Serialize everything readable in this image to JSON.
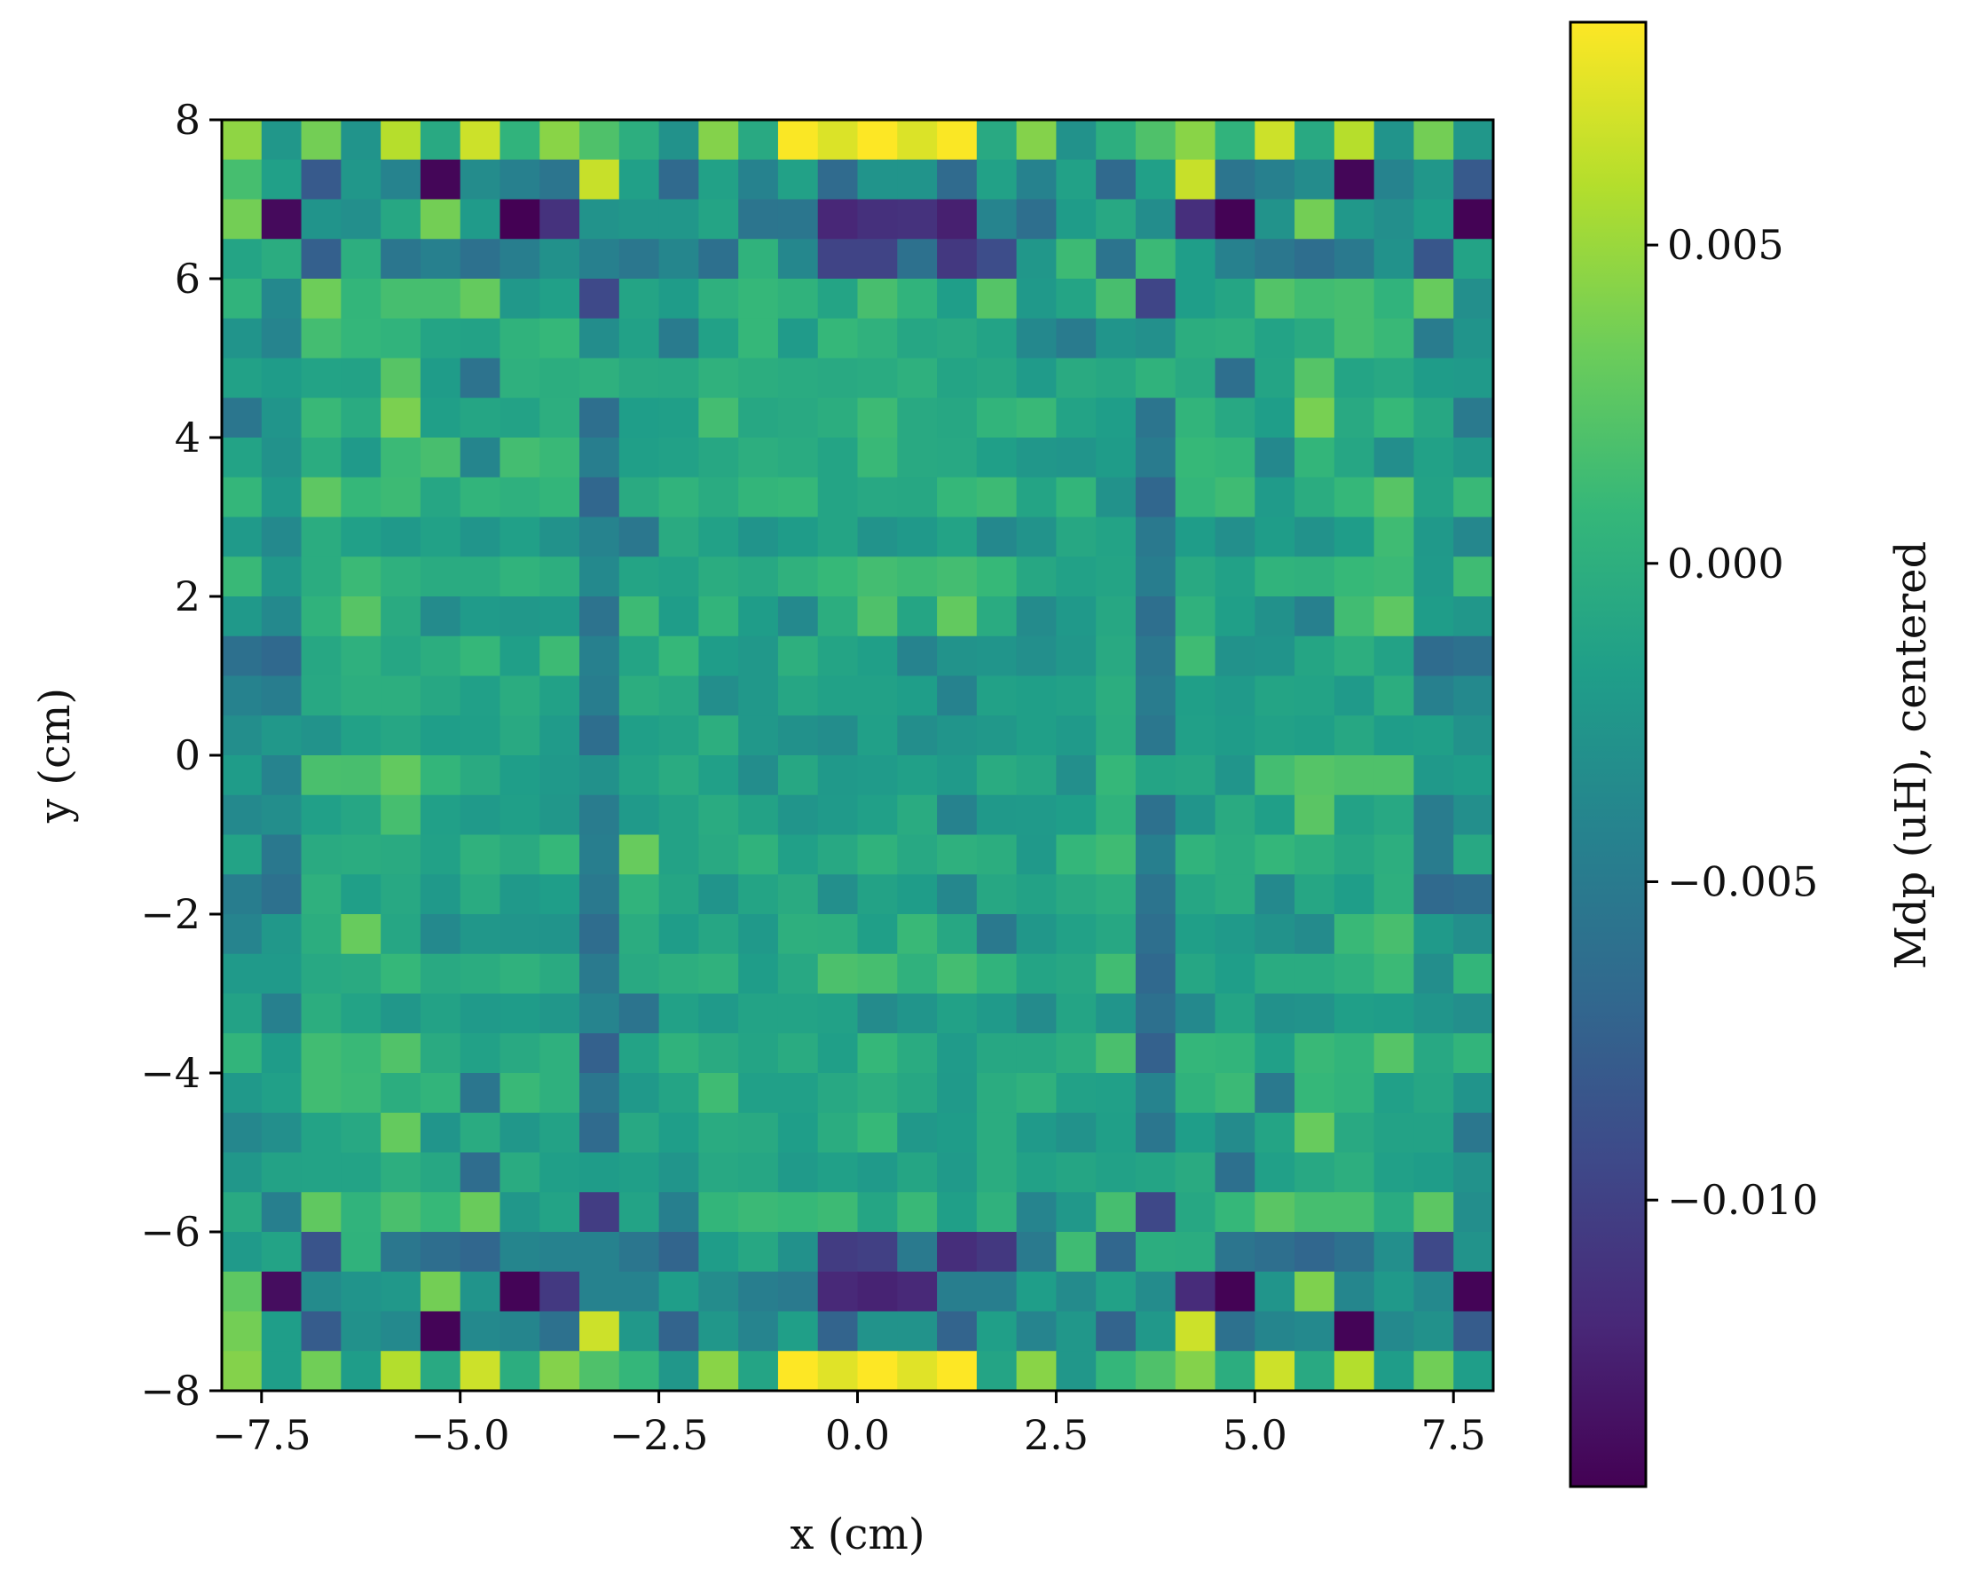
{
  "chart_data": {
    "type": "heatmap",
    "title": "",
    "xlabel": "x (cm)",
    "ylabel": "y (cm)",
    "xlim": [
      -8,
      8
    ],
    "ylim": [
      -8,
      8
    ],
    "nx": 32,
    "ny": 32,
    "x_ticks": [
      -7.5,
      -5.0,
      -2.5,
      0.0,
      2.5,
      5.0,
      7.5
    ],
    "x_tick_labels": [
      "−7.5",
      "−5.0",
      "−2.5",
      "0.0",
      "2.5",
      "5.0",
      "7.5"
    ],
    "y_ticks": [
      8,
      6,
      4,
      2,
      0,
      -2,
      -4,
      -6,
      -8
    ],
    "y_tick_labels": [
      "8",
      "6",
      "4",
      "2",
      "0",
      "−2",
      "−4",
      "−6",
      "−8"
    ],
    "colorbar": {
      "label": "Mdp (uH), centered",
      "colormap": "viridis",
      "vmin": -0.0145,
      "vmax": 0.0085,
      "ticks": [
        0.005,
        0.0,
        -0.005,
        -0.01
      ],
      "tick_labels": [
        "0.005",
        "0.000",
        "−0.005",
        "−0.010"
      ]
    },
    "values": [
      [
        0.0046,
        -0.0024,
        0.0036,
        -0.0026,
        0.006,
        -0.0006,
        0.0068,
        0.0004,
        0.0044,
        0.002,
        -0.0001,
        -0.0028,
        0.0042,
        -0.0006,
        0.0084,
        0.0073,
        0.0086,
        0.0073,
        0.0084,
        -0.0006,
        0.0042,
        -0.0028,
        -0.0001,
        0.002,
        0.0044,
        0.0004,
        0.0068,
        -0.0006,
        0.006,
        -0.0026,
        0.0036,
        -0.0024
      ],
      [
        0.0016,
        -0.0015,
        -0.008,
        -0.0024,
        -0.0042,
        -0.0142,
        -0.0034,
        -0.0045,
        -0.0056,
        0.0066,
        -0.0015,
        -0.0066,
        -0.0014,
        -0.0043,
        -0.0014,
        -0.0065,
        -0.0026,
        -0.0026,
        -0.0065,
        -0.0014,
        -0.0043,
        -0.0014,
        -0.0066,
        -0.0015,
        0.0066,
        -0.0056,
        -0.0045,
        -0.0034,
        -0.0142,
        -0.0042,
        -0.0024,
        -0.008
      ],
      [
        0.0036,
        -0.0139,
        -0.0026,
        -0.0031,
        -0.0008,
        0.0036,
        -0.002,
        -0.0145,
        -0.0112,
        -0.0027,
        -0.0024,
        -0.0024,
        -0.0011,
        -0.0056,
        -0.0055,
        -0.012,
        -0.0113,
        -0.0112,
        -0.0125,
        -0.0041,
        -0.0061,
        -0.0019,
        -0.0007,
        -0.0033,
        -0.0114,
        -0.0144,
        -0.0027,
        0.0036,
        -0.0023,
        -0.0031,
        -0.0017,
        -0.0144
      ],
      [
        -0.0011,
        -0.0003,
        -0.0075,
        -0.0001,
        -0.0055,
        -0.0045,
        -0.0059,
        -0.0047,
        -0.0029,
        -0.0045,
        -0.0054,
        -0.0039,
        -0.006,
        0.0003,
        -0.0038,
        -0.0098,
        -0.0098,
        -0.0059,
        -0.0107,
        -0.0091,
        -0.0024,
        0.0012,
        -0.0057,
        0.0011,
        -0.0017,
        -0.0044,
        -0.0054,
        -0.0062,
        -0.0052,
        -0.0028,
        -0.0083,
        -0.0012
      ],
      [
        0.0004,
        -0.0037,
        0.0034,
        0.0006,
        0.0016,
        0.0016,
        0.003,
        -0.0023,
        -0.0015,
        -0.0094,
        -0.0011,
        -0.0019,
        0.0001,
        0.0008,
        0.0003,
        -0.0011,
        0.0017,
        0.0004,
        -0.0017,
        0.0023,
        -0.0022,
        -0.0011,
        0.0017,
        -0.0097,
        -0.0017,
        -0.001,
        0.0022,
        0.0014,
        0.0016,
        0.0004,
        0.0031,
        -0.0031
      ],
      [
        -0.0026,
        -0.0041,
        0.0015,
        0.0007,
        0.0004,
        -0.0011,
        -0.0013,
        0.0003,
        0.0008,
        -0.0033,
        -0.0014,
        -0.005,
        -0.0014,
        0.0008,
        -0.002,
        0.0008,
        0.0002,
        -0.0009,
        -0.0006,
        -0.0012,
        -0.0037,
        -0.005,
        -0.0025,
        -0.003,
        -0.0002,
        0.0,
        -0.0012,
        -0.0005,
        0.0016,
        0.001,
        -0.0049,
        -0.0026
      ],
      [
        -0.0014,
        -0.0019,
        -0.0012,
        -0.0013,
        0.0024,
        -0.0019,
        -0.0058,
        0.0001,
        -0.0002,
        0.0001,
        -0.0006,
        -0.0007,
        0.0002,
        -0.0002,
        -0.0004,
        -0.0006,
        -0.0004,
        0.0001,
        -0.0011,
        -0.0008,
        -0.002,
        -0.0005,
        -0.0008,
        0.0003,
        -0.0006,
        -0.0061,
        -0.0011,
        0.0023,
        -0.0011,
        -0.0007,
        -0.0019,
        -0.0021
      ],
      [
        -0.0055,
        -0.0025,
        0.001,
        -0.0004,
        0.0039,
        -0.0016,
        -0.001,
        -0.0013,
        -0.0001,
        -0.0061,
        -0.0017,
        -0.0016,
        0.0015,
        -0.0008,
        -0.0006,
        -0.0002,
        0.0012,
        -0.0006,
        -0.0008,
        0.0005,
        0.001,
        -0.0012,
        -0.0017,
        -0.0056,
        0.0005,
        -0.0007,
        -0.0017,
        0.0038,
        -0.0006,
        0.0009,
        -0.0008,
        -0.0051
      ],
      [
        -0.0012,
        -0.0028,
        -0.0003,
        -0.0021,
        0.0011,
        0.0017,
        -0.004,
        0.0015,
        0.001,
        -0.0047,
        -0.0016,
        -0.0014,
        -0.0008,
        -0.0001,
        -0.0004,
        -0.0011,
        0.001,
        -0.0006,
        -0.0007,
        -0.0016,
        -0.0024,
        -0.0025,
        -0.0019,
        -0.005,
        0.0009,
        0.0006,
        -0.0037,
        0.0006,
        -0.0009,
        -0.0032,
        -0.0014,
        -0.0024
      ],
      [
        0.0007,
        -0.0022,
        0.0027,
        0.0008,
        0.0012,
        -0.0009,
        0.0005,
        0.0001,
        0.0006,
        -0.0069,
        -0.0005,
        0.0004,
        -0.0004,
        0.0006,
        0.0008,
        -0.0011,
        -0.0007,
        -0.0008,
        0.0008,
        0.0012,
        -0.0011,
        0.0006,
        -0.0028,
        -0.0069,
        0.0007,
        0.0013,
        -0.002,
        -0.0003,
        0.0008,
        0.0024,
        -0.0013,
        0.001
      ],
      [
        -0.0021,
        -0.0036,
        -0.0003,
        -0.0015,
        -0.0022,
        -0.0014,
        -0.0025,
        -0.0015,
        -0.0028,
        -0.0042,
        -0.0054,
        -0.0005,
        -0.0014,
        -0.0026,
        -0.0019,
        -0.0011,
        -0.0027,
        -0.0022,
        -0.0012,
        -0.0037,
        -0.0027,
        -0.0008,
        -0.0012,
        -0.0052,
        -0.0018,
        -0.0031,
        -0.0018,
        -0.0028,
        -0.0018,
        0.0013,
        -0.0022,
        -0.0038
      ],
      [
        0.001,
        -0.0024,
        -0.0003,
        0.0011,
        0.0001,
        -0.0004,
        -0.0004,
        0.0004,
        -0.0001,
        -0.0036,
        -0.0011,
        -0.0014,
        -0.0003,
        -0.0007,
        0.0002,
        0.0009,
        0.0015,
        0.0012,
        0.0015,
        0.0009,
        -0.0008,
        -0.0014,
        -0.0011,
        -0.0048,
        -0.0006,
        -0.0014,
        0.0004,
        0.0002,
        0.0009,
        0.0011,
        -0.0021,
        0.0013
      ],
      [
        -0.0022,
        -0.0036,
        0.0003,
        0.0024,
        -0.0005,
        -0.0035,
        -0.002,
        -0.0023,
        -0.0021,
        -0.0058,
        0.0012,
        -0.0018,
        0.0005,
        -0.0018,
        -0.0036,
        -0.0002,
        0.002,
        -0.001,
        0.0029,
        -0.0004,
        -0.0035,
        -0.0022,
        -0.0008,
        -0.0061,
        0.0002,
        -0.0016,
        -0.0029,
        -0.0045,
        0.0014,
        0.0027,
        -0.0018,
        -0.0024
      ],
      [
        -0.006,
        -0.0067,
        -0.0008,
        0.0001,
        -0.0009,
        -0.0002,
        0.0008,
        -0.0016,
        0.0012,
        -0.0045,
        -0.0011,
        0.0008,
        -0.0018,
        -0.0023,
        0.0,
        -0.0011,
        -0.0016,
        -0.0042,
        -0.0027,
        -0.0025,
        -0.0031,
        -0.0024,
        -0.0006,
        -0.0054,
        0.0013,
        -0.0028,
        -0.0026,
        -0.001,
        -0.0001,
        -0.0013,
        -0.0064,
        -0.0059
      ],
      [
        -0.0043,
        -0.0048,
        -0.0007,
        -0.0001,
        -0.0001,
        -0.0008,
        -0.0015,
        -0.0003,
        -0.0014,
        -0.0048,
        -0.0002,
        -0.0007,
        -0.0032,
        -0.0023,
        -0.0009,
        -0.0014,
        -0.0014,
        -0.0017,
        -0.0043,
        -0.0014,
        -0.0016,
        -0.0014,
        -0.0002,
        -0.0049,
        -0.0016,
        -0.0021,
        -0.0011,
        -0.0012,
        -0.0021,
        -0.0002,
        -0.0045,
        -0.0036
      ],
      [
        -0.0032,
        -0.0023,
        -0.0027,
        -0.0014,
        -0.0009,
        -0.0017,
        -0.0016,
        -0.0006,
        -0.002,
        -0.0062,
        -0.0016,
        -0.0013,
        -0.0001,
        -0.0023,
        -0.0029,
        -0.0033,
        -0.0015,
        -0.0032,
        -0.0025,
        -0.0023,
        -0.0016,
        -0.0021,
        -0.0003,
        -0.0054,
        -0.0015,
        -0.0019,
        -0.0014,
        -0.0016,
        -0.0008,
        -0.0018,
        -0.0016,
        -0.0028
      ],
      [
        -0.0019,
        -0.0042,
        0.0018,
        0.0017,
        0.0029,
        0.0006,
        -0.0005,
        -0.0017,
        -0.0022,
        -0.0029,
        -0.0012,
        -0.0004,
        -0.0015,
        -0.0033,
        -0.0008,
        -0.0022,
        -0.002,
        -0.0015,
        -0.0021,
        -0.0004,
        -0.0009,
        -0.0031,
        0.0008,
        -0.0011,
        -0.0009,
        -0.0025,
        0.0015,
        0.0023,
        0.002,
        0.002,
        -0.0022,
        -0.0018
      ],
      [
        -0.0036,
        -0.0032,
        -0.0015,
        -0.0009,
        0.0016,
        -0.0015,
        -0.0021,
        -0.0016,
        -0.0024,
        -0.0049,
        -0.0021,
        -0.0013,
        -0.0004,
        -0.0013,
        -0.0025,
        -0.0021,
        -0.0015,
        -0.0004,
        -0.0043,
        -0.0022,
        -0.0021,
        -0.0017,
        0.0003,
        -0.0059,
        -0.0025,
        -0.0005,
        -0.0016,
        0.0025,
        -0.0013,
        -0.0007,
        -0.0049,
        -0.0031
      ],
      [
        -0.0012,
        -0.0053,
        -0.0005,
        -0.0003,
        -0.0005,
        -0.0014,
        0.0002,
        -0.0005,
        0.0008,
        -0.0047,
        0.0031,
        -0.0013,
        -0.0006,
        0.0003,
        -0.0015,
        -0.0007,
        0.0003,
        -0.0007,
        0.0001,
        -0.0002,
        -0.0022,
        0.0007,
        0.0013,
        -0.0046,
        0.0004,
        -0.0003,
        0.0007,
        0.0,
        -0.0008,
        -0.0001,
        -0.0049,
        -0.0007
      ],
      [
        -0.0048,
        -0.0059,
        0.0001,
        -0.0016,
        -0.0007,
        -0.0022,
        -0.0004,
        -0.0022,
        -0.0017,
        -0.0052,
        0.0004,
        -0.001,
        -0.0026,
        -0.0011,
        -0.0005,
        -0.0031,
        -0.0013,
        -0.0018,
        -0.0038,
        -0.0008,
        -0.0013,
        -0.0006,
        -0.0001,
        -0.0057,
        -0.0009,
        -0.0003,
        -0.0036,
        -0.0009,
        -0.0017,
        0.0,
        -0.0066,
        -0.0062
      ],
      [
        -0.0041,
        -0.0023,
        -0.0002,
        0.0031,
        -0.0009,
        -0.0036,
        -0.0024,
        -0.0025,
        -0.0026,
        -0.0063,
        -0.0003,
        -0.0018,
        -0.0009,
        -0.0022,
        0.0,
        -0.0001,
        -0.0016,
        0.001,
        -0.0008,
        -0.0052,
        -0.0024,
        -0.0014,
        -0.0008,
        -0.0061,
        -0.0016,
        -0.0021,
        -0.0028,
        -0.0035,
        0.001,
        0.0017,
        -0.0021,
        -0.0031
      ],
      [
        -0.0021,
        -0.0021,
        -0.0007,
        -0.0005,
        0.0008,
        -0.0006,
        -0.0003,
        0.0002,
        -0.0005,
        -0.0051,
        -0.0006,
        -0.0001,
        0.0002,
        -0.0018,
        -0.0007,
        0.0019,
        0.0016,
        0.0002,
        0.0015,
        0.0004,
        -0.0011,
        -0.0008,
        0.0014,
        -0.0067,
        -0.0009,
        -0.0017,
        -0.0004,
        -0.0004,
        0.0001,
        0.0011,
        -0.0032,
        0.0006
      ],
      [
        -0.0013,
        -0.0045,
        -0.0002,
        -0.0012,
        -0.0024,
        -0.0013,
        -0.0021,
        -0.0019,
        -0.0024,
        -0.0041,
        -0.0057,
        -0.0014,
        -0.0021,
        -0.0012,
        -0.0012,
        -0.0014,
        -0.0035,
        -0.0025,
        -0.0014,
        -0.0021,
        -0.0035,
        -0.0011,
        -0.0025,
        -0.006,
        -0.0036,
        -0.0011,
        -0.0029,
        -0.0027,
        -0.0016,
        -0.0018,
        -0.0025,
        -0.0031
      ],
      [
        0.0005,
        -0.0019,
        0.0014,
        0.001,
        0.0021,
        -0.0005,
        -0.0014,
        -0.0006,
        0.0001,
        -0.0074,
        -0.0012,
        0.0003,
        -0.0005,
        -0.0011,
        -0.0004,
        -0.0016,
        0.0008,
        -0.0004,
        -0.002,
        -0.0008,
        -0.0008,
        -0.0002,
        0.0018,
        -0.0074,
        0.0007,
        0.0005,
        -0.0015,
        0.001,
        0.0005,
        0.0023,
        -0.0007,
        0.0005
      ],
      [
        -0.0022,
        -0.0015,
        0.0014,
        0.0011,
        -0.0002,
        0.0005,
        -0.0055,
        0.001,
        0.0001,
        -0.0055,
        -0.0022,
        -0.0011,
        0.0013,
        -0.0015,
        -0.0015,
        -0.0007,
        -0.0001,
        -0.0008,
        -0.0021,
        -0.0003,
        0.0002,
        -0.0014,
        -0.0015,
        -0.0042,
        0.0003,
        0.0011,
        -0.0052,
        0.0008,
        0.0004,
        -0.0015,
        -0.0009,
        -0.0026
      ],
      [
        -0.0038,
        -0.0031,
        -0.0012,
        -0.0007,
        0.003,
        -0.0025,
        -0.0004,
        -0.0024,
        -0.0013,
        -0.0065,
        -0.0007,
        -0.0017,
        -0.0004,
        -0.0006,
        -0.0017,
        -0.0003,
        0.0009,
        -0.0023,
        -0.0019,
        -0.0003,
        -0.0021,
        -0.0028,
        -0.0016,
        -0.0055,
        -0.0017,
        -0.0035,
        -0.0011,
        0.0031,
        -0.0006,
        -0.0013,
        -0.0013,
        -0.0054
      ],
      [
        -0.0024,
        -0.0013,
        -0.0012,
        -0.0012,
        -0.0001,
        -0.0008,
        -0.0063,
        -0.0004,
        -0.0016,
        -0.0019,
        -0.0016,
        -0.0025,
        -0.0007,
        -0.0009,
        -0.0021,
        -0.0015,
        -0.0021,
        -0.001,
        -0.0021,
        -0.0003,
        -0.0014,
        -0.001,
        -0.0014,
        -0.0011,
        -0.0005,
        -0.006,
        -0.0015,
        -0.0007,
        -0.0001,
        -0.0015,
        -0.0018,
        -0.0028
      ],
      [
        -0.0006,
        -0.0046,
        0.0028,
        0.0004,
        0.0018,
        0.0009,
        0.0032,
        -0.0024,
        -0.0012,
        -0.0103,
        -0.0012,
        -0.0046,
        0.0006,
        0.0011,
        0.0009,
        0.0012,
        -0.001,
        0.001,
        -0.0016,
        0.0002,
        -0.0041,
        -0.0023,
        0.0016,
        -0.0095,
        -0.0008,
        0.0008,
        0.0025,
        0.0016,
        0.0016,
        -0.0004,
        0.0026,
        -0.0032
      ],
      [
        -0.0021,
        -0.0012,
        -0.0085,
        0.0003,
        -0.0054,
        -0.0062,
        -0.0069,
        -0.004,
        -0.0043,
        -0.0043,
        -0.0055,
        -0.0071,
        -0.0018,
        -0.0008,
        -0.0029,
        -0.0104,
        -0.0101,
        -0.0051,
        -0.0115,
        -0.0107,
        -0.0051,
        0.0013,
        -0.0069,
        -0.0002,
        -0.0003,
        -0.0056,
        -0.0061,
        -0.0069,
        -0.0059,
        -0.0031,
        -0.0094,
        -0.0027
      ],
      [
        0.0027,
        -0.0137,
        -0.0035,
        -0.0026,
        -0.0023,
        0.0036,
        -0.0026,
        -0.0143,
        -0.0106,
        -0.0043,
        -0.0043,
        -0.0017,
        -0.0034,
        -0.0047,
        -0.0051,
        -0.0119,
        -0.0123,
        -0.0119,
        -0.0047,
        -0.0047,
        -0.0017,
        -0.0035,
        -0.0014,
        -0.0034,
        -0.0116,
        -0.0144,
        -0.0025,
        0.004,
        -0.0039,
        -0.0022,
        -0.0036,
        -0.0143
      ],
      [
        0.0036,
        -0.0017,
        -0.0078,
        -0.0029,
        -0.0036,
        -0.0143,
        -0.0036,
        -0.004,
        -0.0059,
        0.0068,
        -0.0023,
        -0.0072,
        -0.0024,
        -0.0041,
        -0.0016,
        -0.0072,
        -0.0027,
        -0.0027,
        -0.0072,
        -0.0016,
        -0.0041,
        -0.0024,
        -0.0072,
        -0.0023,
        0.0068,
        -0.0059,
        -0.004,
        -0.0036,
        -0.0143,
        -0.0036,
        -0.0029,
        -0.0078
      ],
      [
        0.0042,
        -0.0017,
        0.0035,
        -0.0018,
        0.0059,
        -0.0006,
        0.0068,
        -0.0002,
        0.0042,
        0.002,
        0.0007,
        -0.0024,
        0.0044,
        -0.0011,
        0.0085,
        0.0075,
        0.0087,
        0.0075,
        0.0085,
        -0.0011,
        0.0044,
        -0.0024,
        0.0007,
        0.002,
        0.0042,
        -0.0002,
        0.0068,
        -0.0006,
        0.0059,
        -0.0018,
        0.0035,
        -0.0017
      ]
    ]
  }
}
